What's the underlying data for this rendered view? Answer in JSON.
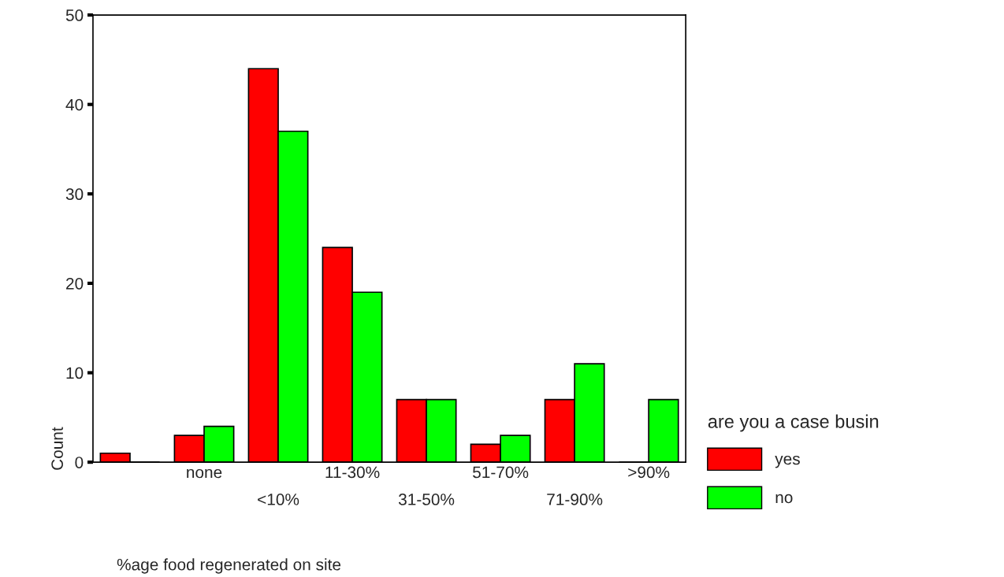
{
  "chart_data": {
    "type": "bar",
    "xlabel": "%age food regenerated on site",
    "ylabel": "Count",
    "legend_title": "are you a case busin",
    "categories": [
      null,
      "none",
      "<10%",
      "11-30%",
      "31-50%",
      "51-70%",
      "71-90%",
      ">90%"
    ],
    "series": [
      {
        "name": "yes",
        "color": "#ff0000",
        "values": [
          1,
          3,
          44,
          24,
          7,
          2,
          7,
          0
        ]
      },
      {
        "name": "no",
        "color": "#00ff00",
        "values": [
          0,
          4,
          37,
          19,
          7,
          3,
          11,
          7
        ]
      }
    ],
    "ylim": [
      0,
      50
    ],
    "yticks": [
      0,
      10,
      20,
      30,
      40,
      50
    ],
    "grid": false,
    "legend": "right"
  }
}
